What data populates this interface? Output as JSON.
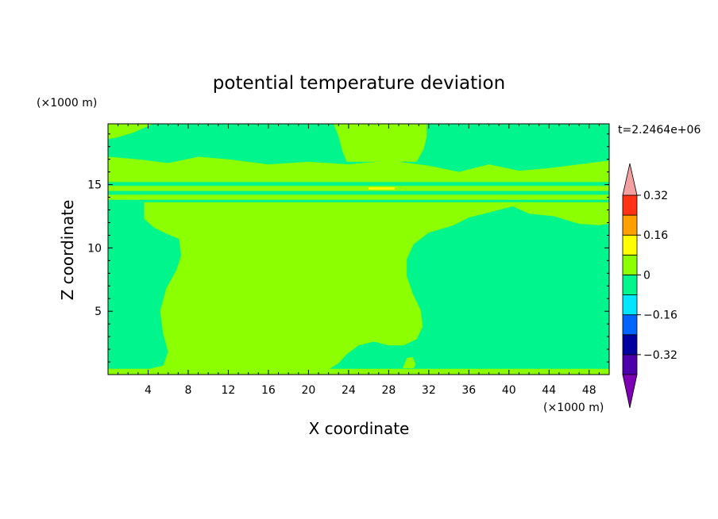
{
  "chart_data": {
    "type": "heatmap",
    "title": "potential temperature deviation",
    "xlabel": "X coordinate",
    "ylabel": "Z coordinate",
    "x_unit": "(×1000 m)",
    "y_unit": "(×1000 m)",
    "time_label": "t=2.2464e+06",
    "xlim": [
      0,
      50
    ],
    "ylim": [
      0,
      19.8
    ],
    "x_ticks": [
      4,
      8,
      12,
      16,
      20,
      24,
      28,
      32,
      36,
      40,
      44,
      48
    ],
    "y_ticks": [
      5,
      10,
      15
    ],
    "colorbar": {
      "levels": [
        -0.4,
        -0.32,
        -0.24,
        -0.16,
        -0.08,
        0,
        0.08,
        0.16,
        0.24,
        0.32,
        0.4
      ],
      "labeled_levels": [
        0.32,
        0.16,
        0,
        -0.16,
        -0.32
      ],
      "colors": [
        "#7d00b4",
        "#4b00aa",
        "#0000a0",
        "#0064ff",
        "#00e6ff",
        "#00f58c",
        "#8cff00",
        "#ffff00",
        "#ffa000",
        "#ff3214",
        "#f5a0a0"
      ],
      "over_color": "#f5a0a0",
      "under_color": "#7d00b4"
    },
    "background_color": "#00f58c",
    "field_regions": [
      {
        "label": "top-left positive",
        "value": 0.04,
        "polygon": [
          [
            0,
            18.6
          ],
          [
            0.8,
            18.7
          ],
          [
            2.5,
            19.1
          ],
          [
            4.5,
            19.8
          ],
          [
            0,
            19.8
          ]
        ]
      },
      {
        "label": "top-center positive",
        "value": 0.04,
        "polygon": [
          [
            22.5,
            19.8
          ],
          [
            23,
            18.8
          ],
          [
            23.4,
            17.6
          ],
          [
            23.8,
            16.8
          ],
          [
            30.8,
            16.8
          ],
          [
            31.5,
            17.8
          ],
          [
            31.8,
            18.8
          ],
          [
            31.8,
            19.8
          ]
        ]
      },
      {
        "label": "upper layer band",
        "value": 0.04,
        "polygon": [
          [
            0,
            17.2
          ],
          [
            3,
            17.0
          ],
          [
            6,
            16.7
          ],
          [
            9,
            17.2
          ],
          [
            12,
            17.0
          ],
          [
            16,
            16.6
          ],
          [
            20,
            16.8
          ],
          [
            24,
            16.6
          ],
          [
            28,
            16.9
          ],
          [
            32,
            16.5
          ],
          [
            35,
            16.0
          ],
          [
            38,
            16.6
          ],
          [
            41,
            16.1
          ],
          [
            44,
            16.3
          ],
          [
            47,
            16.6
          ],
          [
            50,
            16.9
          ],
          [
            50,
            15.2
          ],
          [
            0,
            15.2
          ]
        ]
      },
      {
        "label": "main column positive",
        "value": 0.04,
        "polygon": [
          [
            3.8,
            0.4
          ],
          [
            5.5,
            0.7
          ],
          [
            6,
            1.8
          ],
          [
            5.5,
            3.2
          ],
          [
            5.2,
            5
          ],
          [
            5.8,
            6.8
          ],
          [
            6.8,
            8.2
          ],
          [
            7.3,
            9.4
          ],
          [
            7.1,
            10.7
          ],
          [
            5.6,
            11.2
          ],
          [
            4.6,
            11.6
          ],
          [
            3.6,
            12.3
          ],
          [
            3.6,
            13.6
          ],
          [
            42,
            13.6
          ],
          [
            40,
            13.2
          ],
          [
            38,
            12.8
          ],
          [
            36,
            12.4
          ],
          [
            34.5,
            11.8
          ],
          [
            32,
            11.2
          ],
          [
            30.5,
            10.3
          ],
          [
            29.8,
            9.1
          ],
          [
            29.8,
            7.8
          ],
          [
            30.4,
            6.4
          ],
          [
            31.2,
            5.1
          ],
          [
            31.4,
            3.8
          ],
          [
            30.8,
            2.8
          ],
          [
            29.5,
            2.3
          ],
          [
            28,
            2.3
          ],
          [
            26.5,
            2.6
          ],
          [
            25,
            2.3
          ],
          [
            23.8,
            1.6
          ],
          [
            23,
            0.9
          ],
          [
            22,
            0.4
          ]
        ]
      },
      {
        "label": "right upper patch",
        "value": 0.04,
        "polygon": [
          [
            39.5,
            13.6
          ],
          [
            42,
            12.7
          ],
          [
            44.5,
            12.5
          ],
          [
            47,
            11.9
          ],
          [
            49,
            11.8
          ],
          [
            50,
            11.9
          ],
          [
            50,
            13.6
          ]
        ]
      },
      {
        "label": "layer stripe 1",
        "value": 0.04,
        "polygon": [
          [
            0,
            14.9
          ],
          [
            50,
            14.9
          ],
          [
            50,
            14.5
          ],
          [
            0,
            14.5
          ]
        ]
      },
      {
        "label": "layer stripe 2",
        "value": 0.04,
        "polygon": [
          [
            0,
            14.2
          ],
          [
            50,
            14.2
          ],
          [
            50,
            13.8
          ],
          [
            0,
            13.8
          ]
        ]
      },
      {
        "label": "bottom layer",
        "value": 0.04,
        "polygon": [
          [
            0,
            0
          ],
          [
            50,
            0
          ],
          [
            50,
            0.45
          ],
          [
            0,
            0.45
          ]
        ]
      },
      {
        "label": "small bottom blob",
        "value": 0.04,
        "polygon": [
          [
            9.5,
            1.0
          ],
          [
            10.2,
            1.5
          ],
          [
            10.7,
            1.8
          ],
          [
            11.3,
            1.4
          ],
          [
            11.8,
            1.2
          ],
          [
            12.3,
            0.9
          ],
          [
            11.8,
            0.8
          ],
          [
            10.5,
            0.8
          ]
        ]
      },
      {
        "label": "small bottom bubble",
        "value": 0.04,
        "polygon": [
          [
            29.4,
            0.5
          ],
          [
            29.8,
            1.3
          ],
          [
            30.4,
            1.4
          ],
          [
            30.7,
            0.8
          ],
          [
            30.5,
            0.5
          ]
        ]
      }
    ],
    "highlight_band": {
      "label": "warm streak",
      "value": 0.12,
      "x_range": [
        26,
        28.6
      ],
      "z": 14.7
    }
  }
}
